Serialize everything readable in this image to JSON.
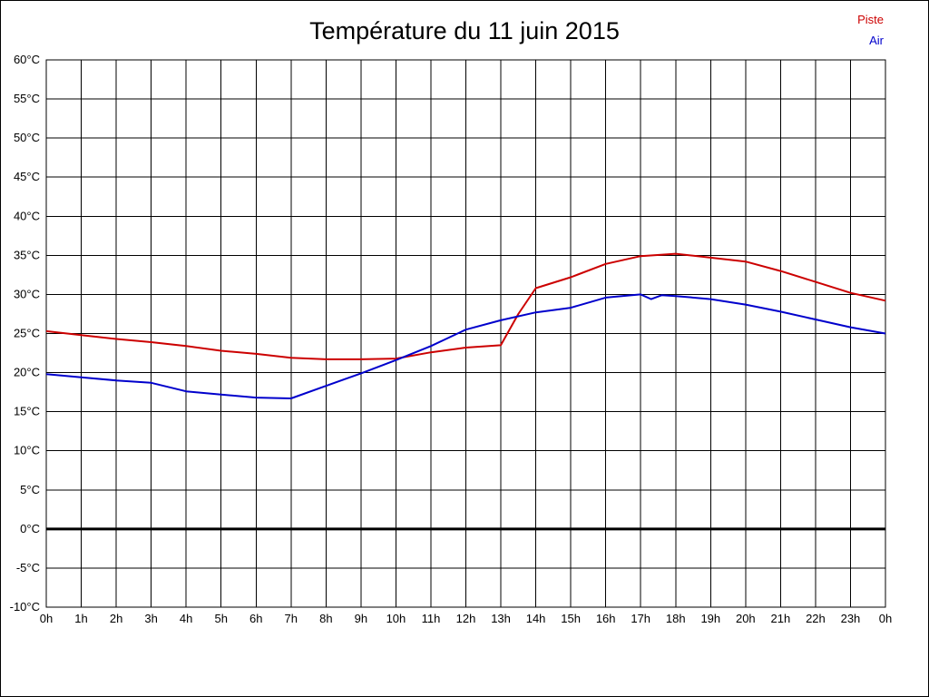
{
  "page": {
    "title": "Température du 11 juin 2015"
  },
  "legend": [
    {
      "label": "Piste",
      "color": "#cc0000"
    },
    {
      "label": "Air",
      "color": "#0000cc"
    }
  ],
  "chart_data": {
    "type": "line",
    "title": "Température du 11 juin 2015",
    "xlabel": "",
    "ylabel": "",
    "xlim": [
      0,
      24
    ],
    "ylim": [
      -10,
      60
    ],
    "y_tick_step": 5,
    "grid": true,
    "legend_position": "top-right",
    "y_tick_labels": [
      "60°C",
      "55°C",
      "50°C",
      "45°C",
      "40°C",
      "35°C",
      "30°C",
      "25°C",
      "20°C",
      "15°C",
      "10°C",
      "5°C",
      "0°C",
      "-5°C",
      "-10°C"
    ],
    "x_tick_labels": [
      "0h",
      "1h",
      "2h",
      "3h",
      "4h",
      "5h",
      "6h",
      "7h",
      "8h",
      "9h",
      "10h",
      "11h",
      "12h",
      "13h",
      "14h",
      "15h",
      "16h",
      "17h",
      "18h",
      "19h",
      "20h",
      "21h",
      "22h",
      "23h",
      "0h"
    ],
    "zero_line": {
      "value": 0,
      "color": "#000000",
      "width": 3
    },
    "series": [
      {
        "name": "Piste",
        "color": "#cc0000",
        "x": [
          0,
          1,
          2,
          3,
          4,
          5,
          6,
          7,
          8,
          9,
          10,
          11,
          12,
          13,
          13.5,
          14,
          15,
          16,
          17,
          18,
          19,
          20,
          21,
          22,
          23,
          24
        ],
        "values": [
          25.3,
          24.8,
          24.3,
          23.9,
          23.4,
          22.8,
          22.4,
          21.9,
          21.7,
          21.7,
          21.8,
          22.6,
          23.2,
          23.5,
          27.5,
          30.8,
          32.2,
          33.9,
          34.9,
          35.2,
          34.7,
          34.2,
          33.0,
          31.6,
          30.2,
          29.2
        ]
      },
      {
        "name": "Air",
        "color": "#0000cc",
        "x": [
          0,
          1,
          2,
          3,
          4,
          5,
          6,
          7,
          8,
          9,
          10,
          11,
          12,
          13,
          14,
          15,
          16,
          17,
          17.3,
          17.6,
          18,
          19,
          20,
          21,
          22,
          23,
          24
        ],
        "values": [
          19.8,
          19.4,
          19.0,
          18.7,
          17.6,
          17.2,
          16.8,
          16.7,
          18.3,
          19.9,
          21.6,
          23.4,
          25.5,
          26.7,
          27.7,
          28.3,
          29.6,
          30.0,
          29.4,
          29.9,
          29.8,
          29.4,
          28.7,
          27.8,
          26.8,
          25.8,
          25.0
        ]
      }
    ]
  }
}
